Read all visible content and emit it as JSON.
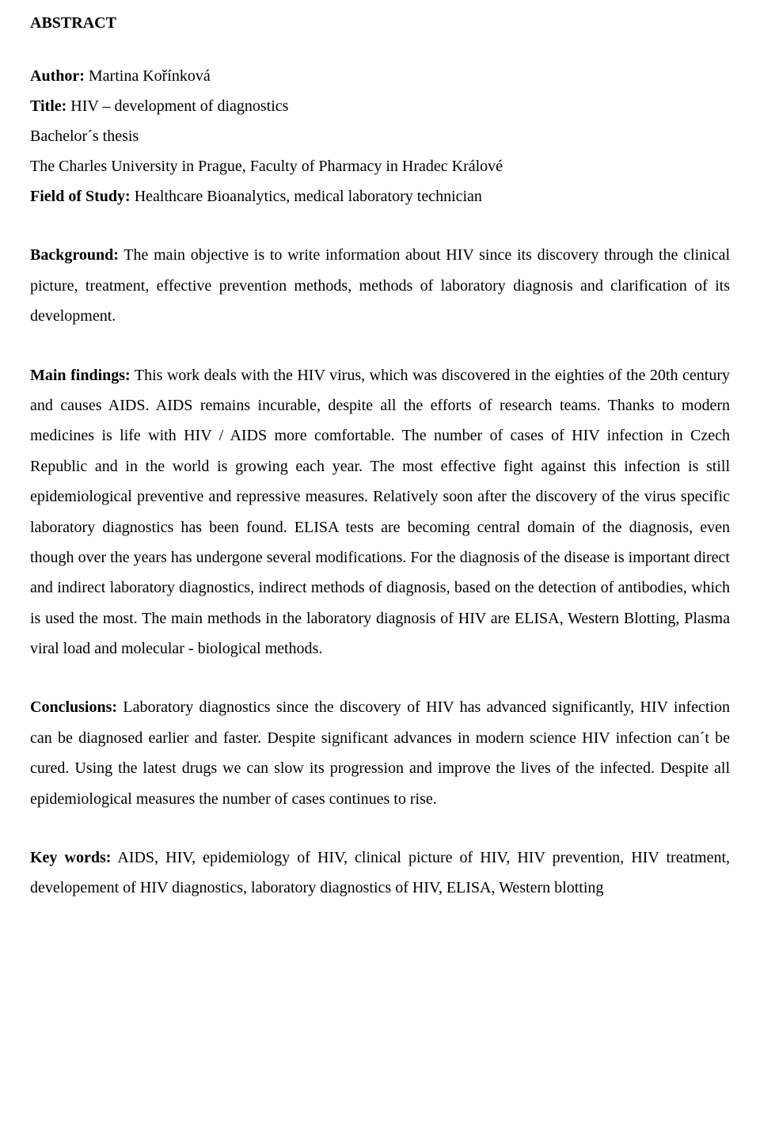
{
  "heading": "ABSTRACT",
  "meta": {
    "author_label": "Author:",
    "author_value": " Martina Kořínková",
    "title_label": "Title:",
    "title_value": " HIV – development of diagnostics",
    "thesis_type": "Bachelor´s thesis",
    "university": "The Charles University in Prague, Faculty of Pharmacy in Hradec Králové",
    "field_label": "Field of Study:",
    "field_value": " Healthcare Bioanalytics, medical laboratory technician"
  },
  "background": {
    "label": "Background:",
    "text": " The main objective is to write information about HIV since its discovery through the clinical picture, treatment, effective prevention methods, methods of laboratory diagnosis and clarification of its development."
  },
  "main_findings": {
    "label": "Main findings:",
    "text": " This work deals with the HIV virus, which was discovered in the eighties of the 20th century and causes AIDS. AIDS remains incurable, despite all the efforts of research teams. Thanks to modern medicines is life with HIV / AIDS more comfortable. The number of cases of HIV infection in Czech Republic and in the world is growing each year. The most effective fight against this infection is still epidemiological preventive and repressive measures. Relatively soon after the discovery of the virus specific laboratory diagnostics has been found. ELISA tests are becoming central domain of the diagnosis, even though over the years has undergone several modifications. For the diagnosis of the disease is important direct and indirect laboratory diagnostics, indirect methods of diagnosis, based on the detection of antibodies, which is used the most. The main methods in the laboratory diagnosis of HIV are ELISA, Western Blotting, Plasma viral load and molecular - biological methods."
  },
  "conclusions": {
    "label": "Conclusions:",
    "text": " Laboratory diagnostics since the discovery of HIV has advanced significantly, HIV infection can be diagnosed earlier and faster. Despite significant advances in modern science HIV infection can´t be cured. Using the latest drugs we can slow its progression and improve the lives of the infected. Despite all epidemiological measures the number of cases continues to rise."
  },
  "keywords": {
    "label": "Key words:",
    "text": " AIDS, HIV, epidemiology of HIV, clinical picture of HIV, HIV prevention, HIV treatment, developement of HIV diagnostics, laboratory diagnostics of HIV, ELISA, Western blotting"
  }
}
